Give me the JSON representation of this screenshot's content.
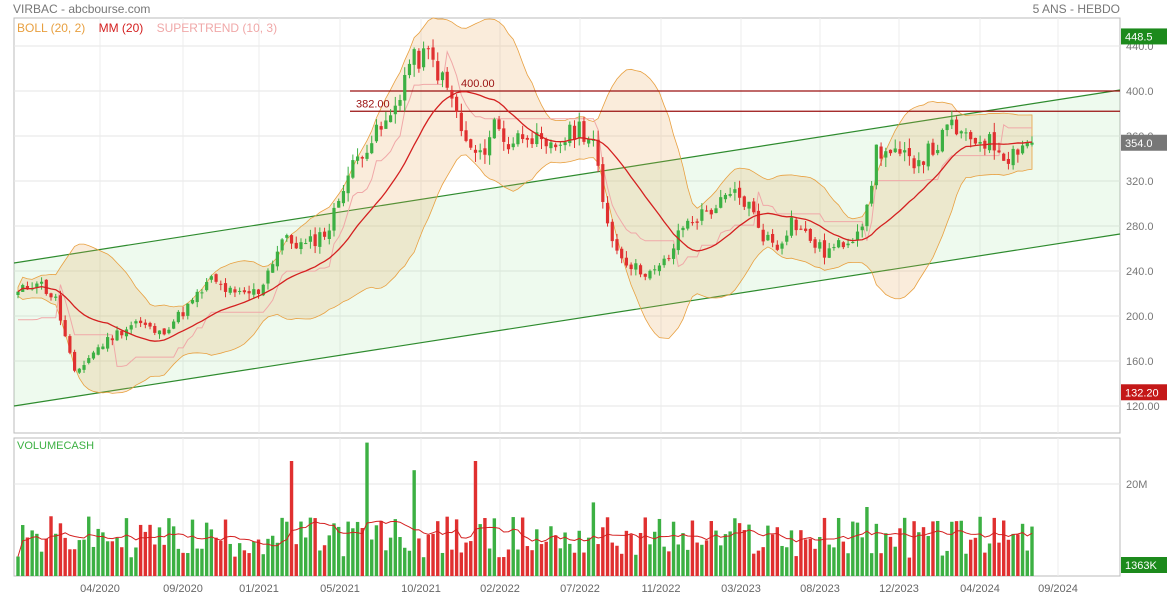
{
  "header": {
    "symbol_source": "VIRBAC - abcbourse.com",
    "period": "5 ANS - HEBDO"
  },
  "legend": [
    {
      "label": "BOLL (20, 2)",
      "color": "#e8a040"
    },
    {
      "label": "MM (20)",
      "color": "#d42020"
    },
    {
      "label": "SUPERTREND (10, 3)",
      "color": "#f0a8a8"
    }
  ],
  "volume_label": "VOLUMECASH",
  "price_badges": {
    "high": "448.5",
    "last": "354.0",
    "low": "132.20"
  },
  "volume_badge": "1363K",
  "levels": [
    {
      "label": "382.00",
      "value": 382
    },
    {
      "label": "400.00",
      "value": 400
    }
  ],
  "colors": {
    "up": "#3cb043",
    "down": "#e03030",
    "ma": "#d42020",
    "boll": "#e8a040",
    "channel": "#2e8b2e",
    "level": "#9a1010"
  },
  "chart_data": [
    {
      "type": "candlestick",
      "title": "",
      "ylim": [
        110,
        460
      ],
      "y_ticks": [
        "120.00",
        "160.0",
        "200.0",
        "240.0",
        "280.0",
        "320.0",
        "360.0",
        "400.0",
        "440.0"
      ],
      "y_tick_values": [
        120,
        160,
        200,
        240,
        280,
        320,
        360,
        400,
        440
      ],
      "x_ticks": [
        "04/2020",
        "09/2020",
        "01/2021",
        "05/2021",
        "10/2021",
        "02/2022",
        "07/2022",
        "11/2022",
        "03/2023",
        "08/2023",
        "12/2023",
        "04/2024",
        "09/2024"
      ],
      "anchors": [
        {
          "week": 0,
          "price": 220
        },
        {
          "week": 4,
          "price": 232
        },
        {
          "week": 8,
          "price": 214
        },
        {
          "week": 12,
          "price": 148
        },
        {
          "week": 16,
          "price": 168
        },
        {
          "week": 20,
          "price": 182
        },
        {
          "week": 25,
          "price": 195
        },
        {
          "week": 30,
          "price": 184
        },
        {
          "week": 36,
          "price": 208
        },
        {
          "week": 41,
          "price": 232
        },
        {
          "week": 46,
          "price": 218
        },
        {
          "week": 51,
          "price": 222
        },
        {
          "week": 56,
          "price": 268
        },
        {
          "week": 61,
          "price": 262
        },
        {
          "week": 66,
          "price": 278
        },
        {
          "week": 69,
          "price": 318
        },
        {
          "week": 73,
          "price": 348
        },
        {
          "week": 79,
          "price": 375
        },
        {
          "week": 83,
          "price": 425
        },
        {
          "week": 87,
          "price": 432
        },
        {
          "week": 89,
          "price": 418
        },
        {
          "week": 92,
          "price": 392
        },
        {
          "week": 95,
          "price": 352
        },
        {
          "week": 98,
          "price": 340
        },
        {
          "week": 101,
          "price": 372
        },
        {
          "week": 104,
          "price": 352
        },
        {
          "week": 108,
          "price": 365
        },
        {
          "week": 112,
          "price": 345
        },
        {
          "week": 116,
          "price": 358
        },
        {
          "week": 119,
          "price": 368
        },
        {
          "week": 122,
          "price": 355
        },
        {
          "week": 124,
          "price": 298
        },
        {
          "week": 127,
          "price": 258
        },
        {
          "week": 131,
          "price": 242
        },
        {
          "week": 135,
          "price": 238
        },
        {
          "week": 138,
          "price": 252
        },
        {
          "week": 141,
          "price": 280
        },
        {
          "week": 145,
          "price": 290
        },
        {
          "week": 149,
          "price": 300
        },
        {
          "week": 152,
          "price": 308
        },
        {
          "week": 155,
          "price": 298
        },
        {
          "week": 158,
          "price": 272
        },
        {
          "week": 161,
          "price": 262
        },
        {
          "week": 164,
          "price": 285
        },
        {
          "week": 167,
          "price": 272
        },
        {
          "week": 171,
          "price": 256
        },
        {
          "week": 174,
          "price": 262
        },
        {
          "week": 177,
          "price": 272
        },
        {
          "week": 180,
          "price": 292
        },
        {
          "week": 182,
          "price": 348
        },
        {
          "week": 186,
          "price": 342
        },
        {
          "week": 189,
          "price": 338
        },
        {
          "week": 192,
          "price": 342
        },
        {
          "week": 195,
          "price": 352
        },
        {
          "week": 198,
          "price": 370
        },
        {
          "week": 201,
          "price": 355
        },
        {
          "week": 204,
          "price": 358
        },
        {
          "week": 207,
          "price": 352
        },
        {
          "week": 210,
          "price": 342
        },
        {
          "week": 213,
          "price": 354
        }
      ]
    },
    {
      "type": "bar",
      "title": "VOLUMECASH",
      "ylim": [
        0,
        30
      ],
      "y_ticks": [
        "20M"
      ],
      "y_tick_values": [
        20
      ],
      "unit": "M",
      "spikes": [
        {
          "week": 74,
          "value": 29
        },
        {
          "week": 58,
          "value": 25
        },
        {
          "week": 97,
          "value": 25
        },
        {
          "week": 84,
          "value": 23
        },
        {
          "week": 122,
          "value": 16
        },
        {
          "week": 180,
          "value": 15
        }
      ]
    }
  ]
}
